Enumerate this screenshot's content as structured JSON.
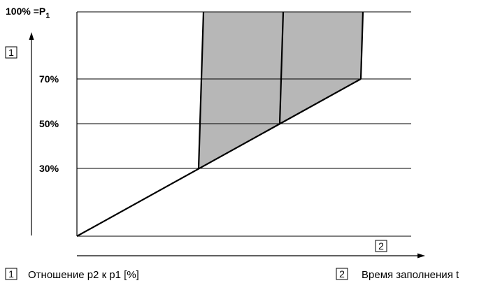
{
  "diagram": {
    "y_ticks": [
      {
        "label": "100% =P",
        "subscript": "1"
      },
      {
        "label": "70%"
      },
      {
        "label": "50%"
      },
      {
        "label": "30%"
      }
    ],
    "y_axis_marker": "1",
    "x_axis_marker": "2",
    "colors": {
      "fill": "#b7b7b7",
      "line": "#000000",
      "grid": "#000000"
    }
  },
  "legend": [
    {
      "number": "1",
      "text": "Отношение p2 к p1 [%]"
    },
    {
      "number": "2",
      "text": "Время заполнения t"
    }
  ]
}
